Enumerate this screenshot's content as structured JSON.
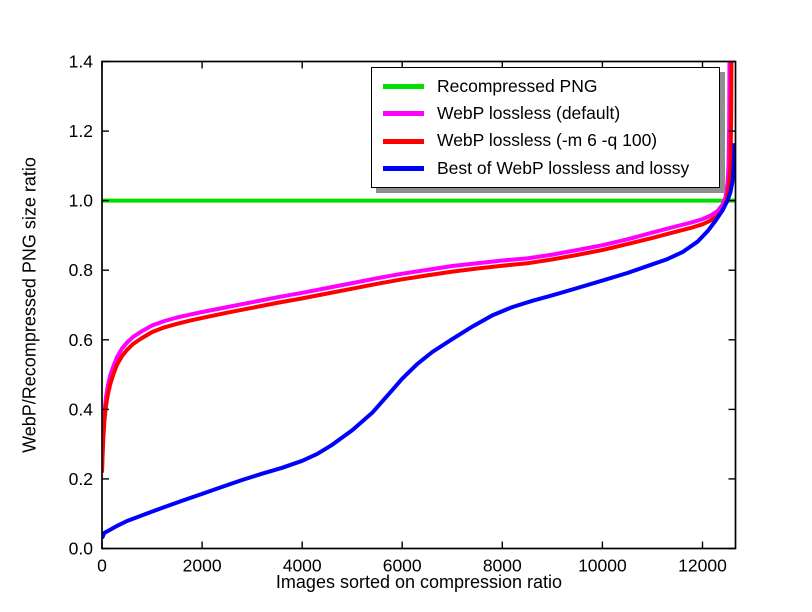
{
  "chart_data": {
    "type": "line",
    "title": "",
    "xlabel": "Images sorted on compression ratio",
    "ylabel": "WebP/Recompressed PNG size ratio",
    "xlim": [
      0,
      12660
    ],
    "ylim": [
      0,
      1.4
    ],
    "grid": false,
    "legend": {
      "position": "upper-right-inside",
      "shadow": true,
      "border": "#000000",
      "background": "#ffffff"
    },
    "x_ticks": [
      0,
      2000,
      4000,
      6000,
      8000,
      10000,
      12000
    ],
    "x_tick_labels": [
      "0",
      "2000",
      "4000",
      "6000",
      "8000",
      "10000",
      "12000"
    ],
    "y_ticks": [
      0.0,
      0.2,
      0.4,
      0.6,
      0.8,
      1.0,
      1.2,
      1.4
    ],
    "y_tick_labels": [
      "0.0",
      "0.2",
      "0.4",
      "0.6",
      "0.8",
      "1.0",
      "1.2",
      "1.4"
    ],
    "series": [
      {
        "name": "Recompressed PNG",
        "color": "#00e000",
        "points": [
          [
            0,
            1.0
          ],
          [
            12660,
            1.0
          ]
        ]
      },
      {
        "name": "WebP lossless (default)",
        "color": "#ff00ff",
        "points": [
          [
            0,
            0.225
          ],
          [
            10,
            0.28
          ],
          [
            25,
            0.34
          ],
          [
            50,
            0.395
          ],
          [
            80,
            0.435
          ],
          [
            120,
            0.47
          ],
          [
            170,
            0.5
          ],
          [
            230,
            0.525
          ],
          [
            300,
            0.55
          ],
          [
            400,
            0.575
          ],
          [
            500,
            0.592
          ],
          [
            620,
            0.608
          ],
          [
            800,
            0.625
          ],
          [
            1000,
            0.641
          ],
          [
            1250,
            0.654
          ],
          [
            1500,
            0.664
          ],
          [
            1750,
            0.672
          ],
          [
            2000,
            0.68
          ],
          [
            2500,
            0.694
          ],
          [
            3000,
            0.708
          ],
          [
            3500,
            0.722
          ],
          [
            4000,
            0.735
          ],
          [
            4500,
            0.749
          ],
          [
            5000,
            0.763
          ],
          [
            5500,
            0.777
          ],
          [
            6000,
            0.79
          ],
          [
            6500,
            0.801
          ],
          [
            7000,
            0.812
          ],
          [
            7500,
            0.82
          ],
          [
            8000,
            0.828
          ],
          [
            8500,
            0.834
          ],
          [
            9000,
            0.845
          ],
          [
            9500,
            0.858
          ],
          [
            10000,
            0.872
          ],
          [
            10500,
            0.889
          ],
          [
            11000,
            0.908
          ],
          [
            11500,
            0.927
          ],
          [
            11800,
            0.938
          ],
          [
            12000,
            0.947
          ],
          [
            12150,
            0.956
          ],
          [
            12300,
            0.97
          ],
          [
            12400,
            0.988
          ],
          [
            12460,
            1.01
          ],
          [
            12500,
            1.05
          ],
          [
            12520,
            1.1
          ],
          [
            12535,
            1.22
          ],
          [
            12540,
            1.42
          ]
        ]
      },
      {
        "name": "WebP lossless (-m 6 -q 100)",
        "color": "#ff0000",
        "points": [
          [
            0,
            0.218
          ],
          [
            10,
            0.26
          ],
          [
            25,
            0.315
          ],
          [
            50,
            0.37
          ],
          [
            80,
            0.41
          ],
          [
            120,
            0.445
          ],
          [
            170,
            0.475
          ],
          [
            230,
            0.502
          ],
          [
            300,
            0.528
          ],
          [
            400,
            0.553
          ],
          [
            500,
            0.571
          ],
          [
            620,
            0.588
          ],
          [
            800,
            0.605
          ],
          [
            1000,
            0.622
          ],
          [
            1250,
            0.636
          ],
          [
            1500,
            0.646
          ],
          [
            1750,
            0.655
          ],
          [
            2000,
            0.663
          ],
          [
            2500,
            0.678
          ],
          [
            3000,
            0.692
          ],
          [
            3500,
            0.706
          ],
          [
            4000,
            0.719
          ],
          [
            4500,
            0.733
          ],
          [
            5000,
            0.747
          ],
          [
            5500,
            0.761
          ],
          [
            6000,
            0.774
          ],
          [
            6500,
            0.785
          ],
          [
            7000,
            0.796
          ],
          [
            7500,
            0.805
          ],
          [
            8000,
            0.813
          ],
          [
            8500,
            0.82
          ],
          [
            9000,
            0.831
          ],
          [
            9500,
            0.844
          ],
          [
            10000,
            0.858
          ],
          [
            10500,
            0.875
          ],
          [
            11000,
            0.893
          ],
          [
            11500,
            0.912
          ],
          [
            11800,
            0.923
          ],
          [
            12000,
            0.932
          ],
          [
            12150,
            0.942
          ],
          [
            12300,
            0.956
          ],
          [
            12400,
            0.972
          ],
          [
            12480,
            0.998
          ],
          [
            12530,
            1.04
          ],
          [
            12560,
            1.1
          ],
          [
            12575,
            1.25
          ],
          [
            12580,
            1.42
          ]
        ]
      },
      {
        "name": "Best of WebP lossless and lossy",
        "color": "#0000ff",
        "points": [
          [
            0,
            0.03
          ],
          [
            50,
            0.045
          ],
          [
            150,
            0.053
          ],
          [
            300,
            0.065
          ],
          [
            500,
            0.079
          ],
          [
            700,
            0.09
          ],
          [
            1000,
            0.106
          ],
          [
            1300,
            0.122
          ],
          [
            1600,
            0.137
          ],
          [
            2000,
            0.157
          ],
          [
            2400,
            0.177
          ],
          [
            2800,
            0.197
          ],
          [
            3200,
            0.215
          ],
          [
            3600,
            0.232
          ],
          [
            4000,
            0.252
          ],
          [
            4300,
            0.272
          ],
          [
            4600,
            0.298
          ],
          [
            5000,
            0.34
          ],
          [
            5400,
            0.39
          ],
          [
            5800,
            0.455
          ],
          [
            6000,
            0.488
          ],
          [
            6300,
            0.53
          ],
          [
            6600,
            0.565
          ],
          [
            7000,
            0.602
          ],
          [
            7400,
            0.638
          ],
          [
            7800,
            0.67
          ],
          [
            8200,
            0.694
          ],
          [
            8600,
            0.712
          ],
          [
            9000,
            0.728
          ],
          [
            9500,
            0.749
          ],
          [
            10000,
            0.77
          ],
          [
            10500,
            0.792
          ],
          [
            11000,
            0.817
          ],
          [
            11300,
            0.832
          ],
          [
            11600,
            0.852
          ],
          [
            11900,
            0.882
          ],
          [
            12100,
            0.912
          ],
          [
            12250,
            0.94
          ],
          [
            12400,
            0.972
          ],
          [
            12500,
            1.0
          ],
          [
            12560,
            1.025
          ],
          [
            12600,
            1.055
          ],
          [
            12620,
            1.09
          ],
          [
            12635,
            1.13
          ],
          [
            12640,
            1.165
          ]
        ]
      }
    ]
  }
}
